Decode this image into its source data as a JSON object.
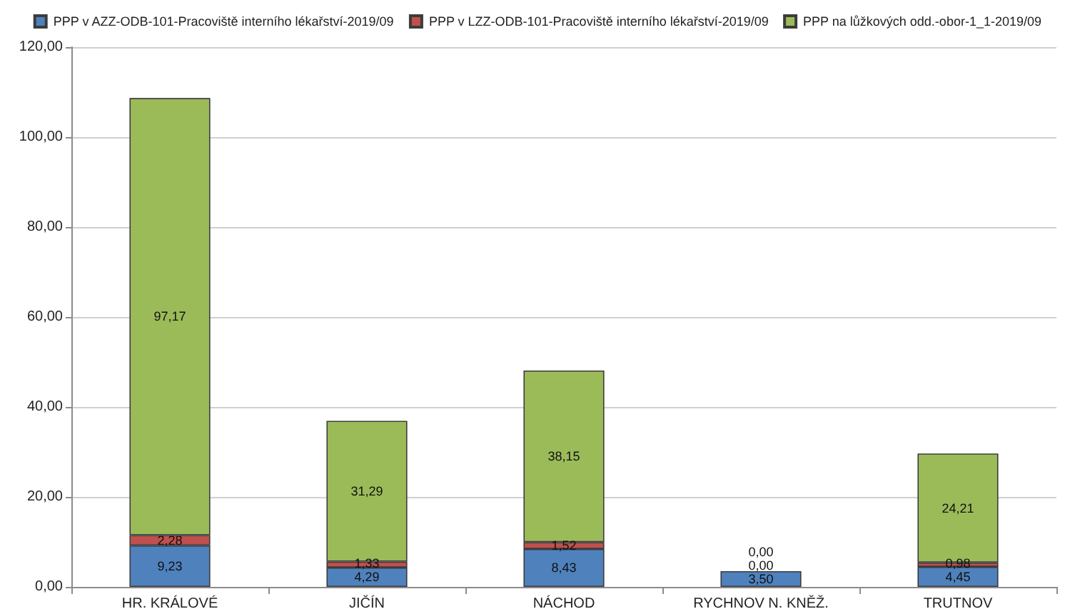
{
  "chart_data": {
    "type": "bar",
    "stacked": true,
    "categories": [
      "HR. KRÁLOVÉ",
      "JIČÍN",
      "NÁCHOD",
      "RYCHNOV N. KNĚŽ.",
      "TRUTNOV"
    ],
    "series": [
      {
        "name": "PPP v AZZ-ODB-101-Pracoviště interního lékařství-2019/09",
        "color": "#4f81bd",
        "values": [
          9.23,
          4.29,
          8.43,
          3.5,
          4.45
        ],
        "value_labels": [
          "9,23",
          "4,29",
          "8,43",
          "3,50",
          "4,45"
        ]
      },
      {
        "name": "PPP v LZZ-ODB-101-Pracoviště interního lékařství-2019/09",
        "color": "#c0504d",
        "values": [
          2.28,
          1.33,
          1.52,
          0.0,
          0.98
        ],
        "value_labels": [
          "2,28",
          "1,33",
          "1,52",
          "0,00",
          "0,98"
        ]
      },
      {
        "name": "PPP na lůžkových odd.-obor-1_1-2019/09",
        "color": "#9bbb59",
        "values": [
          97.17,
          31.29,
          38.15,
          0.0,
          24.21
        ],
        "value_labels": [
          "97,17",
          "31,29",
          "38,15",
          "0,00",
          "24,21"
        ]
      }
    ],
    "ylim": [
      0,
      120
    ],
    "yticks": [
      {
        "value": 0,
        "label": "0,00"
      },
      {
        "value": 20,
        "label": "20,00"
      },
      {
        "value": 40,
        "label": "40,00"
      },
      {
        "value": 60,
        "label": "60,00"
      },
      {
        "value": 80,
        "label": "80,00"
      },
      {
        "value": 100,
        "label": "100,00"
      },
      {
        "value": 120,
        "label": "120,00"
      }
    ],
    "grid": "y",
    "legend": "top"
  }
}
